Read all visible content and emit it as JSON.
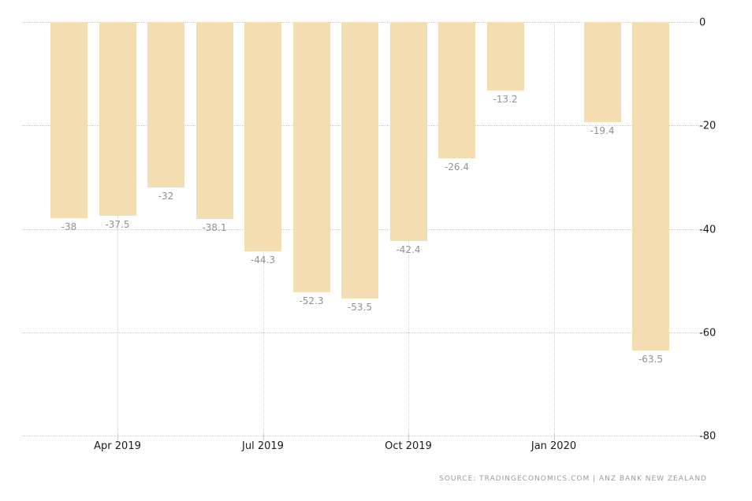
{
  "chart_data": {
    "type": "bar",
    "title": "",
    "xlabel": "",
    "ylabel": "",
    "values": [
      -38,
      -37.5,
      -32,
      -38.1,
      -44.3,
      -52.3,
      -53.5,
      -42.4,
      -26.4,
      -13.2,
      null,
      -19.4,
      -63.5
    ],
    "value_labels": [
      "-38",
      "-37.5",
      "-32",
      "-38.1",
      "-44.3",
      "-52.3",
      "-53.5",
      "-42.4",
      "-26.4",
      "-13.2",
      "",
      "-19.4",
      "-63.5"
    ],
    "x_tick_labels": [
      {
        "label": "Apr 2019",
        "slot": 1
      },
      {
        "label": "Jul 2019",
        "slot": 4
      },
      {
        "label": "Oct 2019",
        "slot": 7
      },
      {
        "label": "Jan 2020",
        "slot": 10
      }
    ],
    "y_tick_labels": [
      "0",
      "-20",
      "-40",
      "-60",
      "-80"
    ],
    "ylim": [
      -80,
      0
    ],
    "grid": "dotted",
    "legend": "none",
    "bar_color": "#f3ddb1",
    "source": "SOURCE: TRADINGECONOMICS.COM | ANZ BANK NEW ZEALAND"
  },
  "colors": {
    "bar": "#f3ddb1",
    "gridline": "#cbcbcb",
    "axis_text": "#1a1a1a",
    "value_text": "#919199",
    "source_text": "#9a9a9a",
    "background": "#ffffff"
  }
}
